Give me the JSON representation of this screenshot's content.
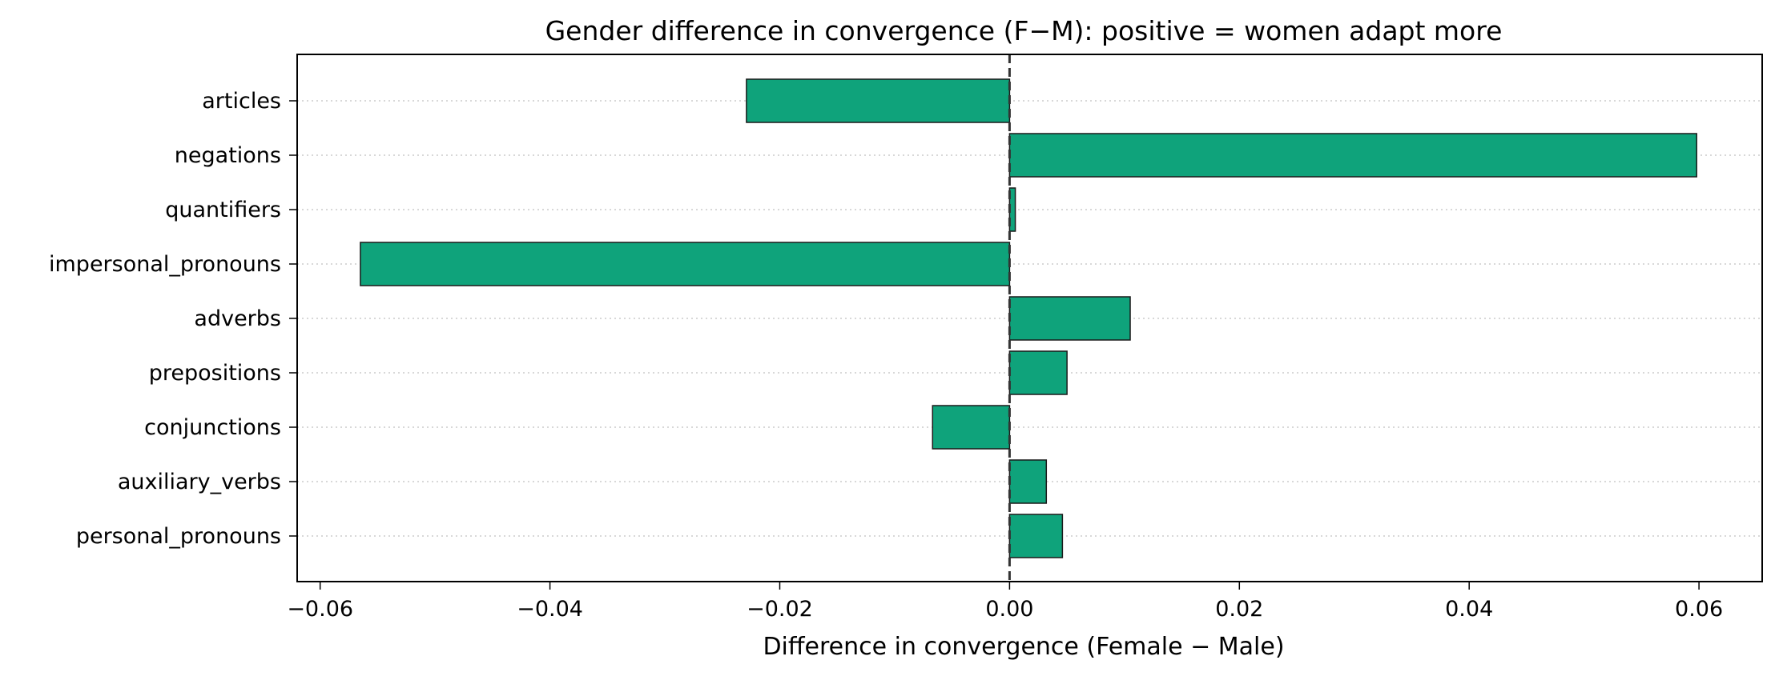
{
  "chart_data": {
    "type": "bar",
    "orientation": "horizontal",
    "title": "Gender difference in convergence (F−M): positive = women adapt more",
    "xlabel": "Difference in convergence (Female − Male)",
    "ylabel": "",
    "categories": [
      "articles",
      "negations",
      "quantifiers",
      "impersonal_pronouns",
      "adverbs",
      "prepositions",
      "conjunctions",
      "auxiliary_verbs",
      "personal_pronouns"
    ],
    "values": [
      -0.0229,
      0.0598,
      0.0005,
      -0.0565,
      0.0105,
      0.005,
      -0.0067,
      0.0032,
      0.0046
    ],
    "xlim": [
      -0.062,
      0.0655
    ],
    "xticks": [
      -0.06,
      -0.04,
      -0.02,
      0.0,
      0.02,
      0.04,
      0.06
    ],
    "xtick_labels": [
      "−0.06",
      "−0.04",
      "−0.02",
      "0.00",
      "0.02",
      "0.04",
      "0.06"
    ],
    "reference_line": 0.0,
    "grid": "horizontal dotted",
    "colors": {
      "bar_fill": "#0fa37b",
      "bar_edge": "#1a1a1a",
      "zero_line": "#333333",
      "grid": "#cccccc"
    }
  }
}
